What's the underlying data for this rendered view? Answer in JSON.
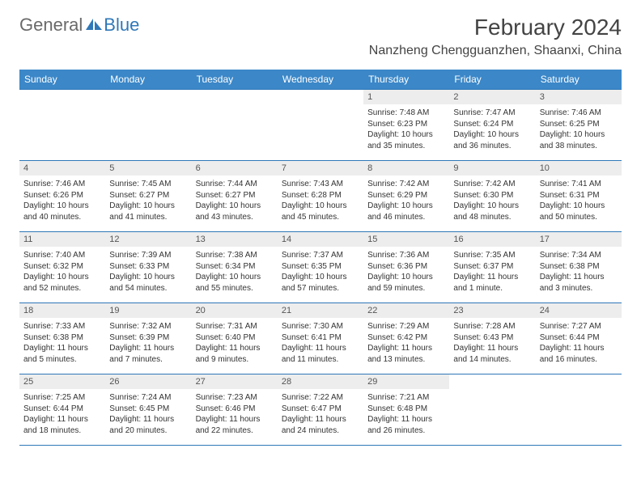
{
  "brand": {
    "general": "General",
    "blue": "Blue"
  },
  "title": "February 2024",
  "location": "Nanzheng Chengguanzhen, Shaanxi, China",
  "colors": {
    "header_bg": "#3b87c8",
    "header_text": "#ffffff",
    "daynum_bg": "#ededed",
    "rule": "#2f78b8",
    "body_text": "#333333"
  },
  "day_headers": [
    "Sunday",
    "Monday",
    "Tuesday",
    "Wednesday",
    "Thursday",
    "Friday",
    "Saturday"
  ],
  "weeks": [
    [
      null,
      null,
      null,
      null,
      {
        "n": "1",
        "sr": "Sunrise: 7:48 AM",
        "ss": "Sunset: 6:23 PM",
        "dl": "Daylight: 10 hours and 35 minutes."
      },
      {
        "n": "2",
        "sr": "Sunrise: 7:47 AM",
        "ss": "Sunset: 6:24 PM",
        "dl": "Daylight: 10 hours and 36 minutes."
      },
      {
        "n": "3",
        "sr": "Sunrise: 7:46 AM",
        "ss": "Sunset: 6:25 PM",
        "dl": "Daylight: 10 hours and 38 minutes."
      }
    ],
    [
      {
        "n": "4",
        "sr": "Sunrise: 7:46 AM",
        "ss": "Sunset: 6:26 PM",
        "dl": "Daylight: 10 hours and 40 minutes."
      },
      {
        "n": "5",
        "sr": "Sunrise: 7:45 AM",
        "ss": "Sunset: 6:27 PM",
        "dl": "Daylight: 10 hours and 41 minutes."
      },
      {
        "n": "6",
        "sr": "Sunrise: 7:44 AM",
        "ss": "Sunset: 6:27 PM",
        "dl": "Daylight: 10 hours and 43 minutes."
      },
      {
        "n": "7",
        "sr": "Sunrise: 7:43 AM",
        "ss": "Sunset: 6:28 PM",
        "dl": "Daylight: 10 hours and 45 minutes."
      },
      {
        "n": "8",
        "sr": "Sunrise: 7:42 AM",
        "ss": "Sunset: 6:29 PM",
        "dl": "Daylight: 10 hours and 46 minutes."
      },
      {
        "n": "9",
        "sr": "Sunrise: 7:42 AM",
        "ss": "Sunset: 6:30 PM",
        "dl": "Daylight: 10 hours and 48 minutes."
      },
      {
        "n": "10",
        "sr": "Sunrise: 7:41 AM",
        "ss": "Sunset: 6:31 PM",
        "dl": "Daylight: 10 hours and 50 minutes."
      }
    ],
    [
      {
        "n": "11",
        "sr": "Sunrise: 7:40 AM",
        "ss": "Sunset: 6:32 PM",
        "dl": "Daylight: 10 hours and 52 minutes."
      },
      {
        "n": "12",
        "sr": "Sunrise: 7:39 AM",
        "ss": "Sunset: 6:33 PM",
        "dl": "Daylight: 10 hours and 54 minutes."
      },
      {
        "n": "13",
        "sr": "Sunrise: 7:38 AM",
        "ss": "Sunset: 6:34 PM",
        "dl": "Daylight: 10 hours and 55 minutes."
      },
      {
        "n": "14",
        "sr": "Sunrise: 7:37 AM",
        "ss": "Sunset: 6:35 PM",
        "dl": "Daylight: 10 hours and 57 minutes."
      },
      {
        "n": "15",
        "sr": "Sunrise: 7:36 AM",
        "ss": "Sunset: 6:36 PM",
        "dl": "Daylight: 10 hours and 59 minutes."
      },
      {
        "n": "16",
        "sr": "Sunrise: 7:35 AM",
        "ss": "Sunset: 6:37 PM",
        "dl": "Daylight: 11 hours and 1 minute."
      },
      {
        "n": "17",
        "sr": "Sunrise: 7:34 AM",
        "ss": "Sunset: 6:38 PM",
        "dl": "Daylight: 11 hours and 3 minutes."
      }
    ],
    [
      {
        "n": "18",
        "sr": "Sunrise: 7:33 AM",
        "ss": "Sunset: 6:38 PM",
        "dl": "Daylight: 11 hours and 5 minutes."
      },
      {
        "n": "19",
        "sr": "Sunrise: 7:32 AM",
        "ss": "Sunset: 6:39 PM",
        "dl": "Daylight: 11 hours and 7 minutes."
      },
      {
        "n": "20",
        "sr": "Sunrise: 7:31 AM",
        "ss": "Sunset: 6:40 PM",
        "dl": "Daylight: 11 hours and 9 minutes."
      },
      {
        "n": "21",
        "sr": "Sunrise: 7:30 AM",
        "ss": "Sunset: 6:41 PM",
        "dl": "Daylight: 11 hours and 11 minutes."
      },
      {
        "n": "22",
        "sr": "Sunrise: 7:29 AM",
        "ss": "Sunset: 6:42 PM",
        "dl": "Daylight: 11 hours and 13 minutes."
      },
      {
        "n": "23",
        "sr": "Sunrise: 7:28 AM",
        "ss": "Sunset: 6:43 PM",
        "dl": "Daylight: 11 hours and 14 minutes."
      },
      {
        "n": "24",
        "sr": "Sunrise: 7:27 AM",
        "ss": "Sunset: 6:44 PM",
        "dl": "Daylight: 11 hours and 16 minutes."
      }
    ],
    [
      {
        "n": "25",
        "sr": "Sunrise: 7:25 AM",
        "ss": "Sunset: 6:44 PM",
        "dl": "Daylight: 11 hours and 18 minutes."
      },
      {
        "n": "26",
        "sr": "Sunrise: 7:24 AM",
        "ss": "Sunset: 6:45 PM",
        "dl": "Daylight: 11 hours and 20 minutes."
      },
      {
        "n": "27",
        "sr": "Sunrise: 7:23 AM",
        "ss": "Sunset: 6:46 PM",
        "dl": "Daylight: 11 hours and 22 minutes."
      },
      {
        "n": "28",
        "sr": "Sunrise: 7:22 AM",
        "ss": "Sunset: 6:47 PM",
        "dl": "Daylight: 11 hours and 24 minutes."
      },
      {
        "n": "29",
        "sr": "Sunrise: 7:21 AM",
        "ss": "Sunset: 6:48 PM",
        "dl": "Daylight: 11 hours and 26 minutes."
      },
      null,
      null
    ]
  ]
}
